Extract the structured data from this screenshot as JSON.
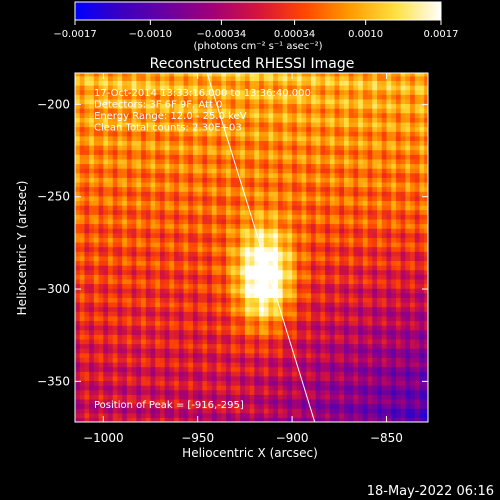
{
  "chart_data": {
    "type": "heatmap",
    "title": "Reconstructed RHESSI Image",
    "xlabel": "Heliocentric X (arcsec)",
    "ylabel": "Heliocentric Y (arcsec)",
    "xlim": [
      -1015,
      -828
    ],
    "ylim": [
      -372,
      -183
    ],
    "x_ticks": [
      -1000,
      -950,
      -900,
      -850
    ],
    "x_tick_labels": [
      "−1000",
      "−950",
      "−900",
      "−850"
    ],
    "y_ticks": [
      -200,
      -250,
      -300,
      -350
    ],
    "y_tick_labels": [
      "−200",
      "−250",
      "−300",
      "−350"
    ],
    "colorbar": {
      "min": -0.0017,
      "max": 0.0017,
      "ticks": [
        -0.0017,
        -0.001,
        -0.00034,
        0.00034,
        0.001,
        0.0017
      ],
      "tick_labels": [
        "−0.0017",
        "−0.0010",
        "−0.00034",
        "0.00034",
        "0.0010",
        "0.0017"
      ],
      "units_text": "(photons cm⁻² s⁻¹ asec⁻²)",
      "colormap": [
        "#0000ff",
        "#3a00c0",
        "#6a00a0",
        "#a00078",
        "#d4143c",
        "#ff4500",
        "#ff9a00",
        "#ffe040",
        "#ffffff"
      ]
    },
    "annotations": [
      "17-Oct-2014 13:33:16.000 to 13:36:40.000",
      "Detectors: 3F 6F 9F, Att 0",
      "Energy Range: 12.0 - 25.0 keV",
      "Clean    Total counts: 2.30E+03"
    ],
    "peak": {
      "x": -916,
      "y": -295,
      "label": "Position of Peak = [-916,-295]"
    },
    "limb_line": [
      [
        -945,
        -183
      ],
      [
        -888,
        -372
      ]
    ],
    "grid": false
  },
  "footer_date": "18-May-2022 06:16"
}
